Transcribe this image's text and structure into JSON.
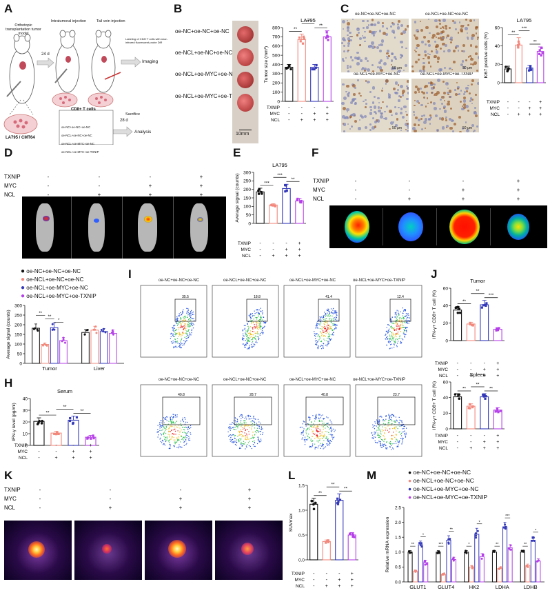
{
  "colors": {
    "black": "#111111",
    "pink": "#f2887c",
    "blue": "#3338b8",
    "purple": "#b53fe8"
  },
  "panels": {
    "A": "A",
    "B": "B",
    "C": "C",
    "D": "D",
    "E": "E",
    "F": "F",
    "G": "",
    "H": "H",
    "I": "I",
    "J": "J",
    "K": "K",
    "L": "L",
    "M": "M"
  },
  "groups": [
    "oe-NC+oe-NC+oe-NC",
    "oe-NCL+oe-NC+oe-NC",
    "oe-NCL+oe-MYC+oe-NC",
    "oe-NCL+oe-MYC+oe-TXNIP"
  ],
  "factors": {
    "txnip": "TXNIP",
    "myc": "MYC",
    "ncl": "NCL",
    "txnip_signs": [
      "-",
      "-",
      "-",
      "+"
    ],
    "myc_signs": [
      "-",
      "-",
      "+",
      "+"
    ],
    "ncl_signs": [
      "-",
      "+",
      "+",
      "+"
    ]
  },
  "schematic": {
    "model": "Orthotopic transplantation tumor model",
    "intra": "Intratumoral injection",
    "tail": "Tail vein injection",
    "day24": "24 d",
    "day28": "28 d",
    "cd8": "CD8+ T cells",
    "labeling": "Labeling of CD8+T cells with near-infrared fluorescent probe DiR",
    "imaging": "Imaging",
    "sacrifice": "Sacrifice",
    "analysis": "Analysis",
    "cells": "LA795 / CMT64",
    "box_groups": [
      "oe-NC+oe-NC+oe-NC",
      "oe-NCL+oe-NC+oe-NC",
      "oe-NCL+oe-MYC+oe-NC",
      "oe-NCL+oe-MYC+oe-TXNIP"
    ]
  },
  "panel_b": {
    "scale": "10mm",
    "rows": [
      "oe-NC+oe-NC+oe-NC",
      "oe-NCL+oe-NC+oe-NC",
      "oe-NCL+oe-MYC+oe-NC",
      "oe-NCL+oe-MYC+oe-TXNIP"
    ]
  },
  "panel_c": {
    "images": [
      "oe-NC+oe-NC+oe-NC",
      "oe-NCL+oe-NC+oe-NC",
      "oe-NCL+oe-MYC+oe-NC",
      "oe-NCL+oe-MYC+oe-TXNIP"
    ],
    "scalebar": "50 μm"
  },
  "panel_i": {
    "top_titles": [
      "oe-NC+oe-NC+oe-NC",
      "oe-NCL+oe-NC+oe-NC",
      "oe-NCL+oe-MYC+oe-NC",
      "oe-NCL+oe-MYC+oe-TXNIP"
    ],
    "top_values": [
      "35.5",
      "18.8",
      "41.4",
      "12.4"
    ],
    "bottom_titles": [
      "oe-NC+oe-NC+oe-NC",
      "oe-NCL+oe-NC+oe-NC",
      "oe-NCL+oe-MYC+oe-NC",
      "oe-NCL+oe-MYC+oe-TXNIP"
    ],
    "bottom_values": [
      "40.8",
      "28.7",
      "40.8",
      "23.7"
    ]
  },
  "legend": [
    "oe-NC+oe-NC+oe-NC",
    "oe-NCL+oe-NC+oe-NC",
    "oe-NCL+oe-MYC+oe-NC",
    "oe-NCL+oe-MYC+oe-TXNIP"
  ],
  "chart_data": [
    {
      "id": "B",
      "type": "bar",
      "title": "LA795",
      "ylabel": "Tumor size (mm³)",
      "categories": [
        "oe-NC+oe-NC+oe-NC",
        "oe-NCL+oe-NC+oe-NC",
        "oe-NCL+oe-MYC+oe-NC",
        "oe-NCL+oe-MYC+oe-TXNIP"
      ],
      "values": [
        370,
        670,
        370,
        700
      ],
      "errors": [
        30,
        60,
        30,
        65
      ],
      "ylim": [
        0,
        800
      ],
      "yticks": [
        "0",
        "100",
        "200",
        "300",
        "400",
        "500",
        "600",
        "700",
        "800"
      ],
      "sig": [
        {
          "from": 0,
          "to": 1,
          "label": "**"
        },
        {
          "from": 1,
          "to": 2,
          "label": "**"
        },
        {
          "from": 2,
          "to": 3,
          "label": "**"
        }
      ]
    },
    {
      "id": "C",
      "type": "bar",
      "title": "LA795",
      "ylabel": "Ki67 positive cells (%)",
      "categories": [
        "oe-NC+oe-NC+oe-NC",
        "oe-NCL+oe-NC+oe-NC",
        "oe-NCL+oe-MYC+oe-NC",
        "oe-NCL+oe-MYC+oe-TXNIP"
      ],
      "values": [
        15,
        41,
        16,
        34
      ],
      "errors": [
        3,
        8,
        3,
        5
      ],
      "ylim": [
        0,
        60
      ],
      "yticks": [
        "0",
        "20",
        "40",
        "60"
      ],
      "sig": [
        {
          "from": 0,
          "to": 1,
          "label": "**"
        },
        {
          "from": 1,
          "to": 2,
          "label": "***"
        },
        {
          "from": 2,
          "to": 3,
          "label": "**"
        }
      ]
    },
    {
      "id": "E",
      "type": "bar",
      "title": "LA795",
      "ylabel": "Average signal (counts)",
      "categories": [
        "oe-NC+oe-NC+oe-NC",
        "oe-NCL+oe-NC+oe-NC",
        "oe-NCL+oe-MYC+oe-NC",
        "oe-NCL+oe-MYC+oe-TXNIP"
      ],
      "values": [
        185,
        108,
        205,
        132
      ],
      "errors": [
        22,
        8,
        25,
        15
      ],
      "ylim": [
        0,
        300
      ],
      "yticks": [
        "0",
        "50",
        "100",
        "150",
        "200",
        "250",
        "300"
      ],
      "sig": [
        {
          "from": 0,
          "to": 1,
          "label": "***"
        },
        {
          "from": 1,
          "to": 2,
          "label": "***"
        },
        {
          "from": 2,
          "to": 3,
          "label": "**"
        }
      ]
    },
    {
      "id": "G",
      "type": "bar",
      "ylabel": "Average signal (counts)",
      "categories": [
        "Tumor",
        "Liver"
      ],
      "series": [
        {
          "name": "oe-NC+oe-NC+oe-NC",
          "values": [
            182,
            160
          ],
          "errors": [
            22,
            15
          ]
        },
        {
          "name": "oe-NCL+oe-NC+oe-NC",
          "values": [
            98,
            172
          ],
          "errors": [
            8,
            20
          ]
        },
        {
          "name": "oe-NCL+oe-MYC+oe-NC",
          "values": [
            185,
            165
          ],
          "errors": [
            25,
            15
          ]
        },
        {
          "name": "oe-NCL+oe-MYC+oe-TXNIP",
          "values": [
            118,
            155
          ],
          "errors": [
            15,
            18
          ]
        }
      ],
      "ylim": [
        0,
        300
      ],
      "yticks": [
        "0",
        "50",
        "100",
        "150",
        "200",
        "250",
        "300"
      ],
      "sig": [
        {
          "from": 0,
          "to": 1,
          "label": "**"
        },
        {
          "from": 1,
          "to": 2,
          "label": "**"
        },
        {
          "from": 2,
          "to": 3,
          "label": "*"
        }
      ]
    },
    {
      "id": "H",
      "type": "bar",
      "title": "Serum",
      "ylabel": "IFN-γ level (pg/ml)",
      "categories": [
        "oe-NC+oe-NC+oe-NC",
        "oe-NCL+oe-NC+oe-NC",
        "oe-NCL+oe-MYC+oe-NC",
        "oe-NCL+oe-MYC+oe-TXNIP"
      ],
      "values": [
        20.5,
        10.5,
        21.5,
        7
      ],
      "errors": [
        3,
        1.5,
        3.5,
        1.5
      ],
      "ylim": [
        0,
        40
      ],
      "yticks": [
        "0",
        "10",
        "20",
        "30",
        "40"
      ],
      "sig": [
        {
          "from": 0,
          "to": 1,
          "label": "**"
        },
        {
          "from": 1,
          "to": 2,
          "label": "**"
        },
        {
          "from": 2,
          "to": 3,
          "label": "**"
        }
      ]
    },
    {
      "id": "J1",
      "type": "bar",
      "title": "Tumor",
      "ylabel": "IFN-γ+ CD8+ T cell (%)",
      "categories": [
        "oe-NC+oe-NC+oe-NC",
        "oe-NCL+oe-NC+oe-NC",
        "oe-NCL+oe-MYC+oe-NC",
        "oe-NCL+oe-MYC+oe-TXNIP"
      ],
      "values": [
        35,
        19,
        41,
        13
      ],
      "errors": [
        4,
        2,
        5,
        1.5
      ],
      "ylim": [
        0,
        60
      ],
      "yticks": [
        "0",
        "20",
        "40",
        "60"
      ],
      "sig": [
        {
          "from": 0,
          "to": 1,
          "label": "**"
        },
        {
          "from": 1,
          "to": 2,
          "label": "**"
        },
        {
          "from": 2,
          "to": 3,
          "label": "***"
        }
      ]
    },
    {
      "id": "J2",
      "type": "bar",
      "title": "Spleen",
      "ylabel": "IFN-γ+ CD8+ T cell (%)",
      "categories": [
        "oe-NC+oe-NC+oe-NC",
        "oe-NCL+oe-NC+oe-NC",
        "oe-NCL+oe-MYC+oe-NC",
        "oe-NCL+oe-MYC+oe-TXNIP"
      ],
      "values": [
        41,
        29,
        41,
        24
      ],
      "errors": [
        4,
        3,
        4,
        3
      ],
      "ylim": [
        0,
        60
      ],
      "yticks": [
        "0",
        "20",
        "40",
        "60"
      ],
      "sig": [
        {
          "from": 0,
          "to": 1,
          "label": "**"
        },
        {
          "from": 1,
          "to": 2,
          "label": "**"
        },
        {
          "from": 2,
          "to": 3,
          "label": "**"
        }
      ]
    },
    {
      "id": "L",
      "type": "bar",
      "ylabel": "SUVmax",
      "categories": [
        "oe-NC+oe-NC+oe-NC",
        "oe-NCL+oe-NC+oe-NC",
        "oe-NCL+oe-MYC+oe-NC",
        "oe-NCL+oe-MYC+oe-TXNIP"
      ],
      "values": [
        1.12,
        0.37,
        1.2,
        0.5
      ],
      "errors": [
        0.12,
        0.03,
        0.13,
        0.05
      ],
      "ylim": [
        0,
        1.5
      ],
      "yticks": [
        "0.0",
        "0.5",
        "1.0",
        "1.5"
      ],
      "sig": [
        {
          "from": 0,
          "to": 1,
          "label": "**"
        },
        {
          "from": 1,
          "to": 2,
          "label": "**"
        },
        {
          "from": 2,
          "to": 3,
          "label": "**"
        }
      ]
    },
    {
      "id": "M",
      "type": "bar",
      "ylabel": "Relative mRNA expression",
      "categories": [
        "GLUT1",
        "GLUT4",
        "HK2",
        "LDHA",
        "LDHB"
      ],
      "series": [
        {
          "name": "oe-NC+oe-NC+oe-NC",
          "values": [
            1.0,
            1.0,
            1.0,
            1.0,
            1.0
          ],
          "errors": [
            0.05,
            0.05,
            0.05,
            0.05,
            0.05
          ]
        },
        {
          "name": "oe-NCL+oe-NC+oe-NC",
          "values": [
            0.35,
            0.25,
            0.5,
            0.45,
            0.55
          ],
          "errors": [
            0.05,
            0.04,
            0.05,
            0.05,
            0.05
          ]
        },
        {
          "name": "oe-NCL+oe-MYC+oe-NC",
          "values": [
            1.25,
            1.4,
            1.6,
            1.85,
            1.4
          ],
          "errors": [
            0.12,
            0.15,
            0.2,
            0.15,
            0.12
          ]
        },
        {
          "name": "oe-NCL+oe-MYC+oe-TXNIP",
          "values": [
            0.65,
            0.75,
            0.85,
            1.15,
            0.7
          ],
          "errors": [
            0.08,
            0.08,
            0.1,
            0.1,
            0.08
          ]
        }
      ],
      "ylim": [
        0,
        2.5
      ],
      "yticks": [
        "0.0",
        "0.5",
        "1.0",
        "1.5",
        "2.0",
        "2.5"
      ],
      "sig_groups": [
        [
          "**",
          "*"
        ],
        [
          "***",
          "**"
        ],
        [
          "*",
          "*"
        ],
        [
          "**",
          "***"
        ],
        [
          "**",
          "*"
        ]
      ]
    }
  ]
}
